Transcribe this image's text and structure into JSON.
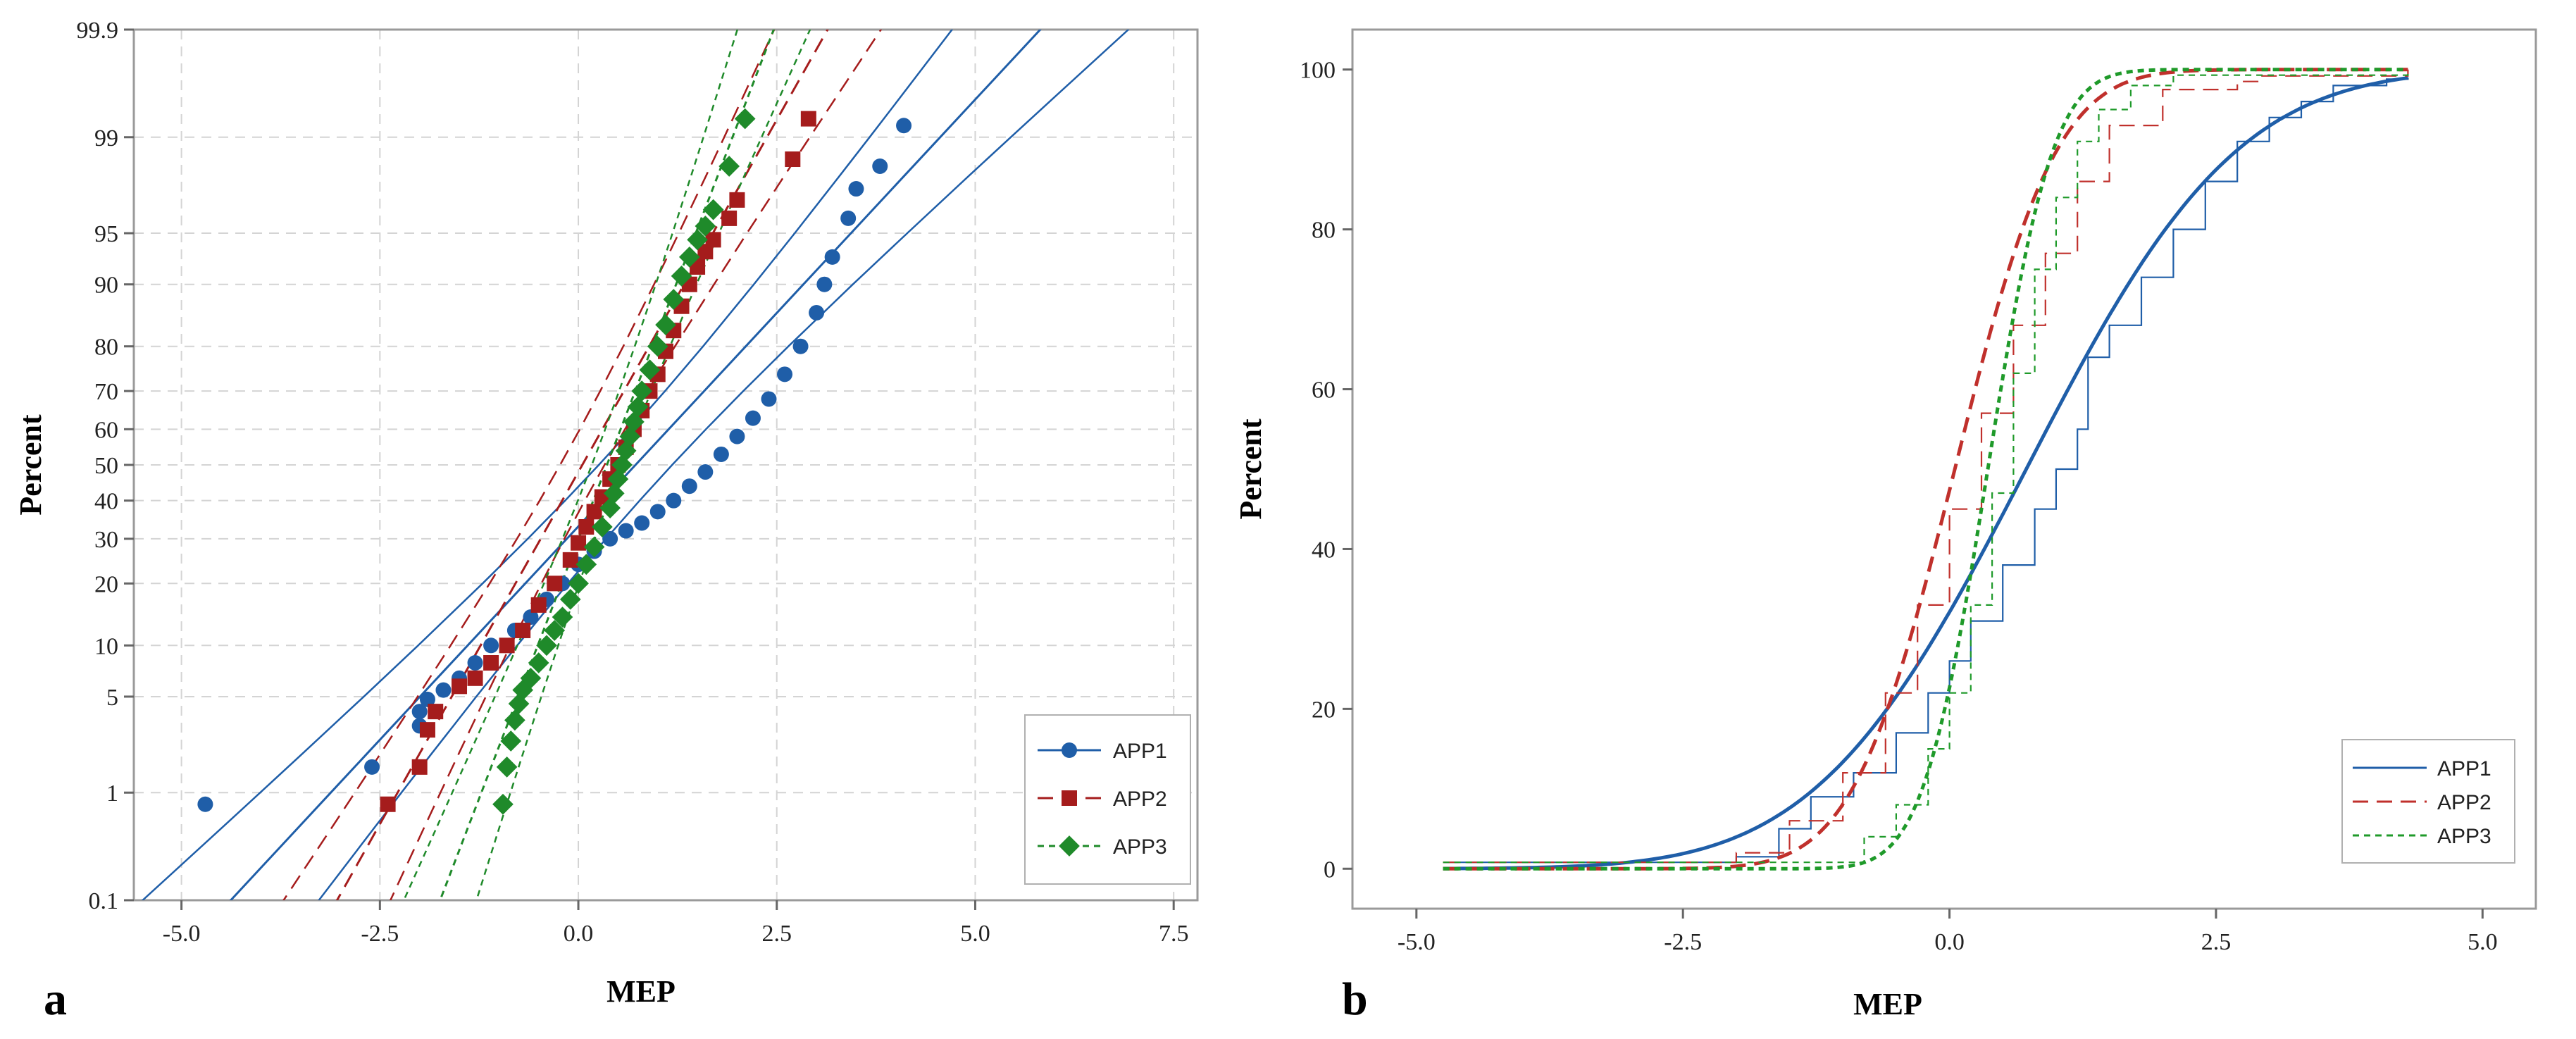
{
  "chart_data": [
    {
      "id": "a",
      "panel_label": "a",
      "type": "scatter",
      "subtype": "normal probability plot with 95% confidence bands",
      "xlabel": "MEP",
      "ylabel": "Percent",
      "xlim": [
        -5.6,
        7.8
      ],
      "ylim": [
        0.1,
        99.9
      ],
      "yscale": "normal-probability",
      "xticks": [
        -5.0,
        -2.5,
        0.0,
        2.5,
        5.0,
        7.5
      ],
      "xtick_labels": [
        "-5.0",
        "-2.5",
        "0.0",
        "2.5",
        "5.0",
        "7.5"
      ],
      "yticks": [
        0.1,
        1,
        5,
        10,
        20,
        30,
        40,
        50,
        60,
        70,
        80,
        90,
        95,
        99,
        99.9
      ],
      "ytick_labels": [
        "0.1",
        "1",
        "5",
        "10",
        "20",
        "30",
        "40",
        "50",
        "60",
        "70",
        "80",
        "90",
        "95",
        "99",
        "99.9"
      ],
      "grid": true,
      "legend_position": "bottom-right",
      "series": [
        {
          "name": "APP1",
          "color": "#1f5ea8",
          "marker": "circle",
          "linestyle": "solid",
          "fit_mean": 0.72,
          "fit_sd": 1.65,
          "points": [
            [
              -4.7,
              0.8
            ],
            [
              -2.6,
              1.6
            ],
            [
              -2.0,
              3.2
            ],
            [
              -2.0,
              4.0
            ],
            [
              -1.9,
              4.8
            ],
            [
              -1.7,
              5.5
            ],
            [
              -1.5,
              6.5
            ],
            [
              -1.3,
              8
            ],
            [
              -1.1,
              10
            ],
            [
              -0.8,
              12
            ],
            [
              -0.6,
              14
            ],
            [
              -0.4,
              17
            ],
            [
              -0.2,
              20
            ],
            [
              0.0,
              24
            ],
            [
              0.2,
              27
            ],
            [
              0.4,
              30
            ],
            [
              0.6,
              32
            ],
            [
              0.8,
              34
            ],
            [
              1.0,
              37
            ],
            [
              1.2,
              40
            ],
            [
              1.4,
              44
            ],
            [
              1.6,
              48
            ],
            [
              1.8,
              53
            ],
            [
              2.0,
              58
            ],
            [
              2.2,
              63
            ],
            [
              2.4,
              68
            ],
            [
              2.6,
              74
            ],
            [
              2.8,
              80
            ],
            [
              3.0,
              86
            ],
            [
              3.1,
              90
            ],
            [
              3.2,
              93
            ],
            [
              3.4,
              96
            ],
            [
              3.5,
              97.5
            ],
            [
              3.8,
              98.3
            ],
            [
              4.1,
              99.2
            ]
          ]
        },
        {
          "name": "APP2",
          "color": "#a51c1c",
          "marker": "square",
          "linestyle": "dashed",
          "fit_mean": 0.05,
          "fit_sd": 1.0,
          "points": [
            [
              -2.4,
              0.8
            ],
            [
              -2.0,
              1.6
            ],
            [
              -1.9,
              3.0
            ],
            [
              -1.8,
              4.0
            ],
            [
              -1.5,
              5.8
            ],
            [
              -1.3,
              6.5
            ],
            [
              -1.1,
              8
            ],
            [
              -0.9,
              10
            ],
            [
              -0.7,
              12
            ],
            [
              -0.5,
              16
            ],
            [
              -0.3,
              20
            ],
            [
              -0.1,
              25
            ],
            [
              0.0,
              29
            ],
            [
              0.1,
              33
            ],
            [
              0.2,
              37
            ],
            [
              0.3,
              41
            ],
            [
              0.4,
              46
            ],
            [
              0.5,
              50
            ],
            [
              0.6,
              55
            ],
            [
              0.7,
              60
            ],
            [
              0.8,
              65
            ],
            [
              0.9,
              70
            ],
            [
              1.0,
              74
            ],
            [
              1.1,
              79
            ],
            [
              1.2,
              83
            ],
            [
              1.3,
              87
            ],
            [
              1.4,
              90
            ],
            [
              1.5,
              92
            ],
            [
              1.6,
              93.5
            ],
            [
              1.7,
              94.5
            ],
            [
              1.9,
              96
            ],
            [
              2.0,
              97
            ],
            [
              2.7,
              98.5
            ],
            [
              2.9,
              99.3
            ]
          ]
        },
        {
          "name": "APP3",
          "color": "#1f8a2a",
          "marker": "diamond",
          "linestyle": "dotted",
          "fit_mean": 0.36,
          "fit_sd": 0.68,
          "points": [
            [
              -0.95,
              0.8
            ],
            [
              -0.9,
              1.6
            ],
            [
              -0.85,
              2.5
            ],
            [
              -0.8,
              3.5
            ],
            [
              -0.75,
              4.5
            ],
            [
              -0.7,
              5.5
            ],
            [
              -0.6,
              6.5
            ],
            [
              -0.5,
              8
            ],
            [
              -0.4,
              10
            ],
            [
              -0.3,
              12
            ],
            [
              -0.2,
              14
            ],
            [
              -0.1,
              17
            ],
            [
              0.0,
              20
            ],
            [
              0.1,
              24
            ],
            [
              0.2,
              28
            ],
            [
              0.3,
              33
            ],
            [
              0.4,
              38
            ],
            [
              0.45,
              42
            ],
            [
              0.5,
              46
            ],
            [
              0.55,
              50
            ],
            [
              0.6,
              54
            ],
            [
              0.65,
              58
            ],
            [
              0.7,
              62
            ],
            [
              0.75,
              66
            ],
            [
              0.8,
              70
            ],
            [
              0.9,
              75
            ],
            [
              1.0,
              80
            ],
            [
              1.1,
              84
            ],
            [
              1.2,
              88
            ],
            [
              1.3,
              91
            ],
            [
              1.4,
              93
            ],
            [
              1.5,
              94.5
            ],
            [
              1.6,
              95.5
            ],
            [
              1.7,
              96.5
            ],
            [
              1.9,
              98.3
            ],
            [
              2.1,
              99.3
            ]
          ]
        }
      ]
    },
    {
      "id": "b",
      "panel_label": "b",
      "type": "line",
      "subtype": "empirical CDF with fitted normal CDF",
      "xlabel": "MEP",
      "ylabel": "Percent",
      "xlim": [
        -5.6,
        5.5
      ],
      "ylim": [
        -5,
        105
      ],
      "xticks": [
        -5.0,
        -2.5,
        0.0,
        2.5,
        5.0
      ],
      "xtick_labels": [
        "-5.0",
        "-2.5",
        "0.0",
        "2.5",
        "5.0"
      ],
      "yticks": [
        0,
        20,
        40,
        60,
        80,
        100
      ],
      "ytick_labels": [
        "0",
        "20",
        "40",
        "60",
        "80",
        "100"
      ],
      "grid": false,
      "legend_position": "bottom-right",
      "series": [
        {
          "name": "APP1",
          "color": "#1f5ea8",
          "linestyle": "solid",
          "fit_mean": 0.72,
          "fit_sd": 1.55,
          "ecdf": [
            [
              -4.75,
              0.8
            ],
            [
              -2.0,
              1.5
            ],
            [
              -1.6,
              5
            ],
            [
              -1.3,
              9
            ],
            [
              -0.9,
              12
            ],
            [
              -0.5,
              17
            ],
            [
              -0.2,
              22
            ],
            [
              0.0,
              26
            ],
            [
              0.2,
              31
            ],
            [
              0.5,
              38
            ],
            [
              0.8,
              45
            ],
            [
              1.0,
              50
            ],
            [
              1.2,
              55
            ],
            [
              1.3,
              64
            ],
            [
              1.5,
              68
            ],
            [
              1.8,
              74
            ],
            [
              2.1,
              80
            ],
            [
              2.4,
              86
            ],
            [
              2.7,
              91
            ],
            [
              3.0,
              94
            ],
            [
              3.3,
              96
            ],
            [
              3.6,
              98
            ],
            [
              4.1,
              98.8
            ],
            [
              4.3,
              99
            ]
          ]
        },
        {
          "name": "APP2",
          "color": "#c0302c",
          "linestyle": "dashed",
          "fit_mean": 0.05,
          "fit_sd": 0.75,
          "ecdf": [
            [
              -2.4,
              0.8
            ],
            [
              -2.0,
              2
            ],
            [
              -1.5,
              6
            ],
            [
              -1.0,
              12
            ],
            [
              -0.6,
              22
            ],
            [
              -0.3,
              33
            ],
            [
              0.0,
              45
            ],
            [
              0.3,
              57
            ],
            [
              0.6,
              68
            ],
            [
              0.9,
              77
            ],
            [
              1.2,
              86
            ],
            [
              1.5,
              93
            ],
            [
              2.0,
              97.5
            ],
            [
              2.7,
              98.5
            ],
            [
              2.9,
              99.2
            ],
            [
              4.3,
              100
            ]
          ]
        },
        {
          "name": "APP3",
          "color": "#1f9a2a",
          "linestyle": "dotted",
          "fit_mean": 0.36,
          "fit_sd": 0.48,
          "ecdf": [
            [
              -1.0,
              0.8
            ],
            [
              -0.8,
              4
            ],
            [
              -0.5,
              8
            ],
            [
              -0.2,
              15
            ],
            [
              0.0,
              22
            ],
            [
              0.2,
              33
            ],
            [
              0.4,
              47
            ],
            [
              0.6,
              62
            ],
            [
              0.8,
              75
            ],
            [
              1.0,
              84
            ],
            [
              1.2,
              91
            ],
            [
              1.4,
              95
            ],
            [
              1.7,
              98
            ],
            [
              2.1,
              99.3
            ],
            [
              4.3,
              100
            ]
          ]
        }
      ]
    }
  ]
}
